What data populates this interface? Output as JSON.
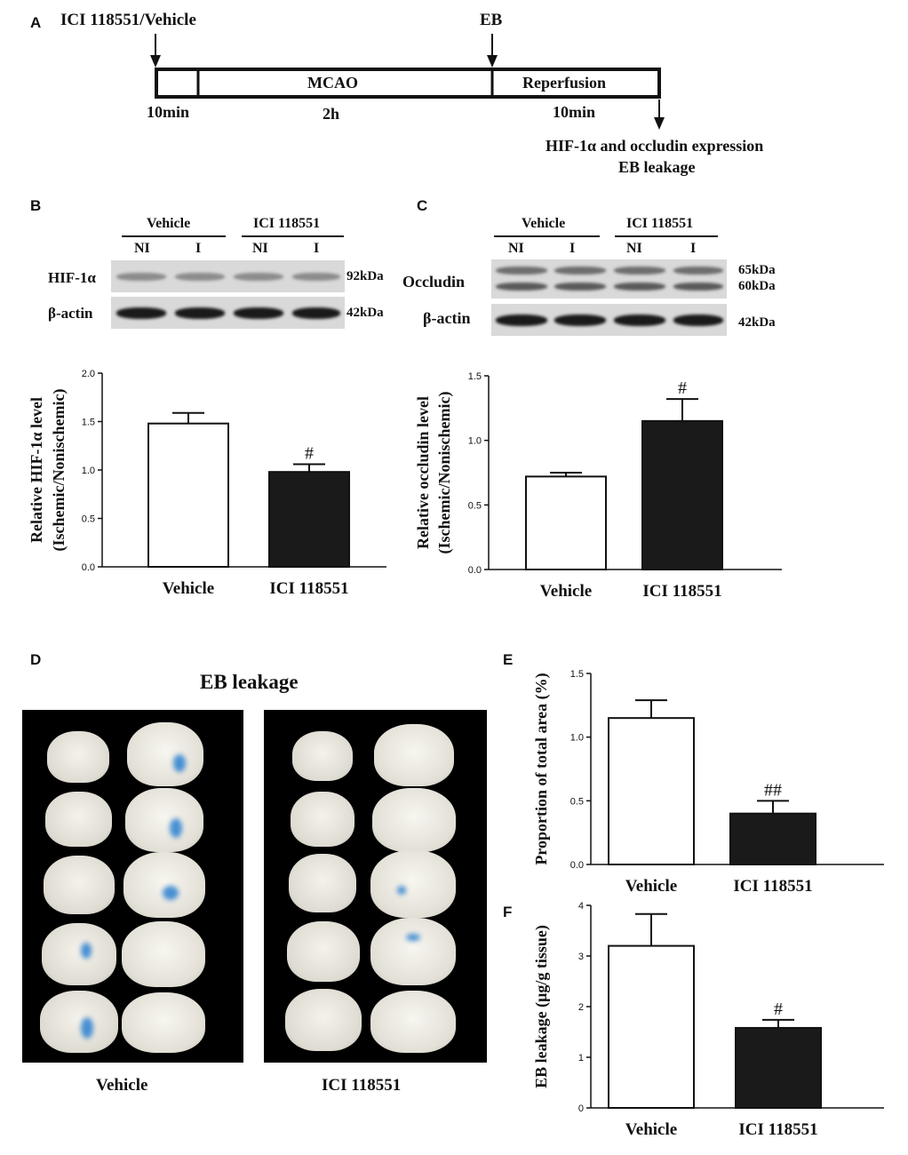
{
  "panels": {
    "a": "A",
    "b": "B",
    "c": "C",
    "d": "D",
    "e": "E",
    "f": "F"
  },
  "timeline": {
    "drug_label": "ICI 118551/Vehicle",
    "eb_label": "EB",
    "mcao": "MCAO",
    "reperfusion": "Reperfusion",
    "t1": "10min",
    "t2": "2h",
    "t3": "10min",
    "outcome_line1": "HIF-1α and occludin expression",
    "outcome_line2": "EB leakage"
  },
  "blot_b": {
    "group1": "Vehicle",
    "group2": "ICI 118551",
    "lanes": [
      "NI",
      "I",
      "NI",
      "I"
    ],
    "row1": "HIF-1α",
    "row2": "β-actin",
    "kda1": "92kDa",
    "kda2": "42kDa"
  },
  "blot_c": {
    "group1": "Vehicle",
    "group2": "ICI 118551",
    "lanes": [
      "NI",
      "I",
      "NI",
      "I"
    ],
    "row1": "Occludin",
    "row2": "β-actin",
    "kda1a": "65kDa",
    "kda1b": "60kDa",
    "kda2": "42kDa"
  },
  "photo_d": {
    "title": "EB leakage",
    "label_left": "Vehicle",
    "label_right": "ICI 118551"
  },
  "chart_data": [
    {
      "id": "B",
      "type": "bar",
      "categories": [
        "Vehicle",
        "ICI 118551"
      ],
      "values": [
        1.48,
        0.98
      ],
      "errors": [
        0.11,
        0.08
      ],
      "annotations": [
        "",
        "#"
      ],
      "colors": [
        "#ffffff",
        "#1a1a1a"
      ],
      "ylabel": [
        "Relative HIF-1α level",
        "(Ischemic/Nonischemic)"
      ],
      "ylim": [
        0,
        2.0
      ],
      "yticks": [
        "0.0",
        "0.5",
        "1.0",
        "1.5",
        "2.0"
      ]
    },
    {
      "id": "C",
      "type": "bar",
      "categories": [
        "Vehicle",
        "ICI 118551"
      ],
      "values": [
        0.72,
        1.15
      ],
      "errors": [
        0.03,
        0.17
      ],
      "annotations": [
        "",
        "#"
      ],
      "colors": [
        "#ffffff",
        "#1a1a1a"
      ],
      "ylabel": [
        "Relative occludin level",
        "(Ischemic/Nonischemic)"
      ],
      "ylim": [
        0,
        1.5
      ],
      "yticks": [
        "0.0",
        "0.5",
        "1.0",
        "1.5"
      ]
    },
    {
      "id": "E",
      "type": "bar",
      "categories": [
        "Vehicle",
        "ICI 118551"
      ],
      "values": [
        1.15,
        0.4
      ],
      "errors": [
        0.14,
        0.1
      ],
      "annotations": [
        "",
        "##"
      ],
      "colors": [
        "#ffffff",
        "#1a1a1a"
      ],
      "ylabel": [
        "Proportion of total area (%)"
      ],
      "ylim": [
        0,
        1.5
      ],
      "yticks": [
        "0.0",
        "0.5",
        "1.0",
        "1.5"
      ]
    },
    {
      "id": "F",
      "type": "bar",
      "categories": [
        "Vehicle",
        "ICI 118551"
      ],
      "values": [
        3.2,
        1.58
      ],
      "errors": [
        0.63,
        0.16
      ],
      "annotations": [
        "",
        "#"
      ],
      "colors": [
        "#ffffff",
        "#1a1a1a"
      ],
      "ylabel": [
        "EB leakage (μg/g tissue)"
      ],
      "ylim": [
        0,
        4
      ],
      "yticks": [
        "0",
        "1",
        "2",
        "3",
        "4"
      ]
    }
  ]
}
